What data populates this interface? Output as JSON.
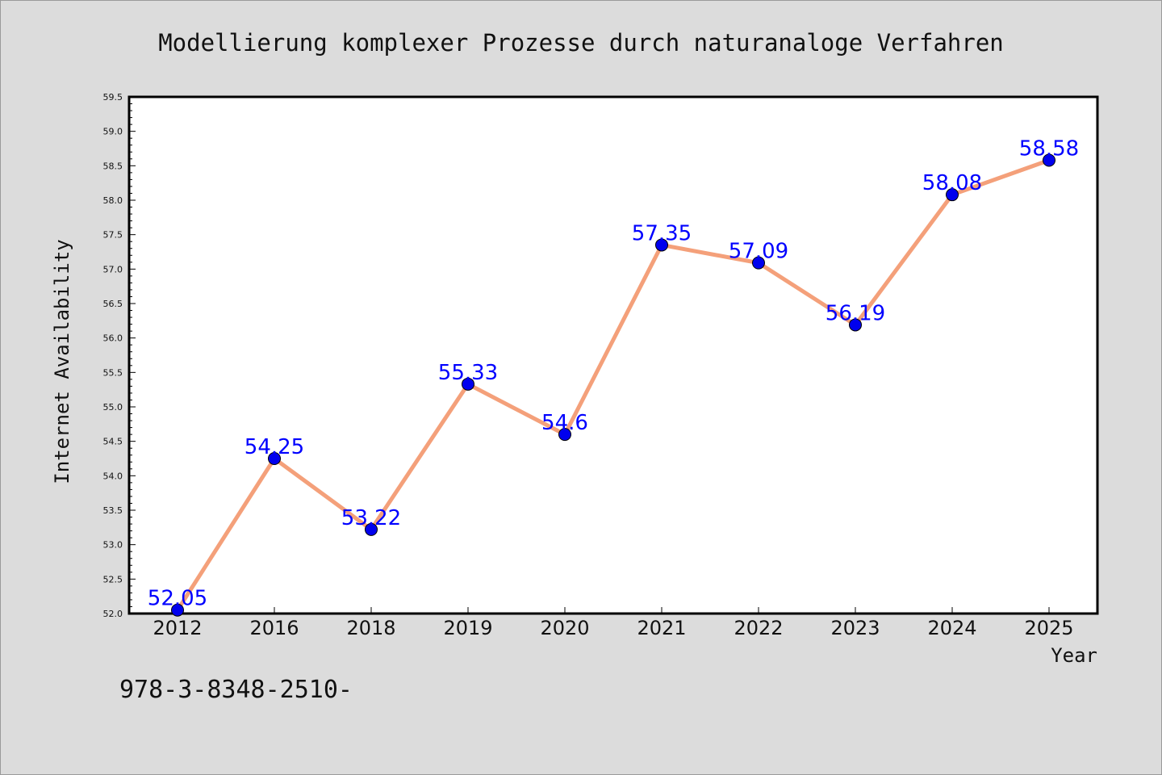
{
  "chart_data": {
    "type": "line",
    "title": "Modellierung komplexer Prozesse durch naturanaloge Verfahren",
    "xlabel": "Year",
    "ylabel": "Internet Availability",
    "categories": [
      "2012",
      "2016",
      "2018",
      "2019",
      "2020",
      "2021",
      "2022",
      "2023",
      "2024",
      "2025"
    ],
    "values": [
      52.05,
      54.25,
      53.22,
      55.33,
      54.6,
      57.35,
      57.09,
      56.19,
      58.08,
      58.58
    ],
    "data_labels": [
      "52.05",
      "54.25",
      "53.22",
      "55.33",
      "54.6",
      "57.35",
      "57.09",
      "56.19",
      "58.08",
      "58.58"
    ],
    "ylim": [
      52.0,
      59.5
    ],
    "yticks": [
      "52.0",
      "52.5",
      "53.0",
      "53.5",
      "54.0",
      "54.5",
      "55.0",
      "55.5",
      "56.0",
      "56.5",
      "57.0",
      "57.5",
      "58.0",
      "58.5",
      "59.0",
      "59.5"
    ],
    "grid": false,
    "colors": {
      "line": "#f4a07a",
      "marker": "#0000ee",
      "data_label": "#0000ff",
      "background": "#dcdcdc",
      "plot_background": "#ffffff"
    }
  },
  "footer": {
    "isbn": "978-3-8348-2510-"
  }
}
